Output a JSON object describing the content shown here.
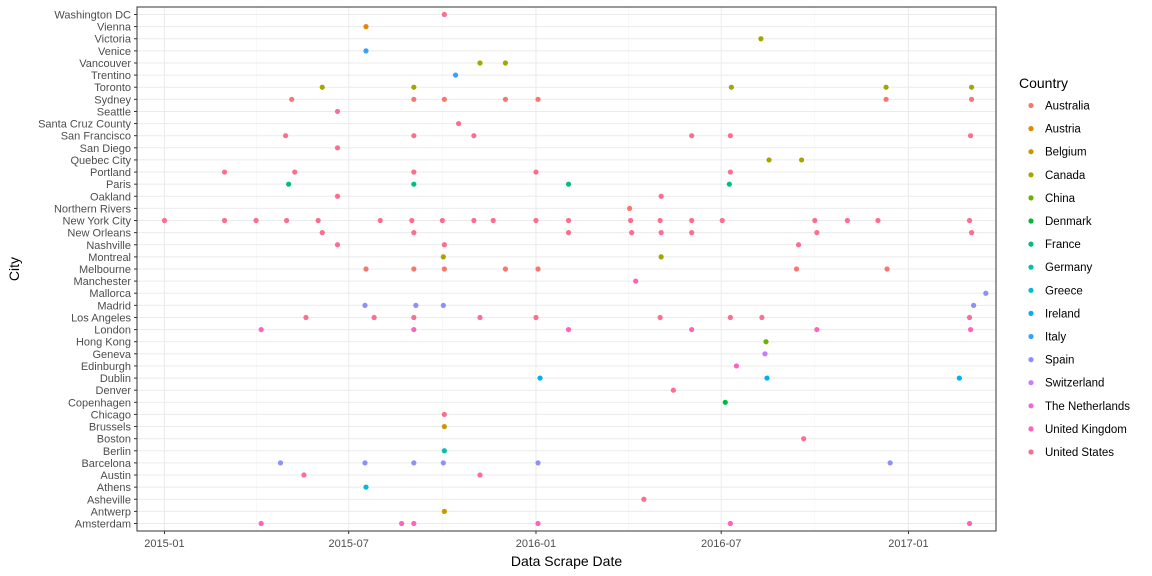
{
  "chart_data": {
    "type": "scatter",
    "title": "",
    "xlabel": "Data Scrape Date",
    "ylabel": "City",
    "xlim": [
      "2014-12-05",
      "2017-03-28"
    ],
    "x_ticks": [
      "2015-01-01",
      "2015-07-01",
      "2016-01-01",
      "2016-07-01",
      "2017-01-01"
    ],
    "x_tick_labels": [
      "2015-01",
      "2015-07",
      "2016-01",
      "2016-07",
      "2017-01"
    ],
    "grid": true,
    "legend": {
      "title": "Country",
      "position": "right",
      "entries": [
        {
          "name": "Australia",
          "color": "#F8766D"
        },
        {
          "name": "Austria",
          "color": "#E58700"
        },
        {
          "name": "Belgium",
          "color": "#C99800"
        },
        {
          "name": "Canada",
          "color": "#A3A500"
        },
        {
          "name": "China",
          "color": "#6BB100"
        },
        {
          "name": "Denmark",
          "color": "#00BA38"
        },
        {
          "name": "France",
          "color": "#00BF7D"
        },
        {
          "name": "Germany",
          "color": "#00C0AF"
        },
        {
          "name": "Greece",
          "color": "#00BCD8"
        },
        {
          "name": "Ireland",
          "color": "#00B0F6"
        },
        {
          "name": "Italy",
          "color": "#35A2FF"
        },
        {
          "name": "Spain",
          "color": "#8E8FFF"
        },
        {
          "name": "Switzerland",
          "color": "#C77CFF"
        },
        {
          "name": "The Netherlands",
          "color": "#F264E2"
        },
        {
          "name": "United Kingdom",
          "color": "#FF62BC"
        },
        {
          "name": "United States",
          "color": "#FF6C91"
        }
      ]
    },
    "categories": [
      "Washington DC",
      "Vienna",
      "Victoria",
      "Venice",
      "Vancouver",
      "Trentino",
      "Toronto",
      "Sydney",
      "Seattle",
      "Santa Cruz County",
      "San Francisco",
      "San Diego",
      "Quebec City",
      "Portland",
      "Paris",
      "Oakland",
      "Northern Rivers",
      "New York City",
      "New Orleans",
      "Nashville",
      "Montreal",
      "Melbourne",
      "Manchester",
      "Mallorca",
      "Madrid",
      "Los Angeles",
      "London",
      "Hong Kong",
      "Geneva",
      "Edinburgh",
      "Dublin",
      "Denver",
      "Copenhagen",
      "Chicago",
      "Brussels",
      "Boston",
      "Berlin",
      "Barcelona",
      "Austin",
      "Athens",
      "Asheville",
      "Antwerp",
      "Amsterdam"
    ],
    "points": [
      {
        "city": "Washington DC",
        "country": "United States",
        "dates": [
          "2015-10-03"
        ]
      },
      {
        "city": "Vienna",
        "country": "Austria",
        "dates": [
          "2015-07-18"
        ]
      },
      {
        "city": "Victoria",
        "country": "Canada",
        "dates": [
          "2016-08-09"
        ]
      },
      {
        "city": "Venice",
        "country": "Italy",
        "dates": [
          "2015-07-18"
        ]
      },
      {
        "city": "Vancouver",
        "country": "Canada",
        "dates": [
          "2015-11-07",
          "2015-12-02"
        ]
      },
      {
        "city": "Trentino",
        "country": "Italy",
        "dates": [
          "2015-10-14"
        ]
      },
      {
        "city": "Toronto",
        "country": "Canada",
        "dates": [
          "2015-06-05",
          "2015-09-03",
          "2016-07-11",
          "2016-12-10",
          "2017-03-04"
        ]
      },
      {
        "city": "Sydney",
        "country": "Australia",
        "dates": [
          "2015-05-06",
          "2015-09-03",
          "2015-10-03",
          "2015-12-02",
          "2016-01-03",
          "2016-12-10",
          "2017-03-04"
        ]
      },
      {
        "city": "Seattle",
        "country": "United States",
        "dates": [
          "2015-06-20"
        ]
      },
      {
        "city": "Santa Cruz County",
        "country": "United States",
        "dates": [
          "2015-10-17"
        ]
      },
      {
        "city": "San Francisco",
        "country": "United States",
        "dates": [
          "2015-04-30",
          "2015-09-03",
          "2015-11-01",
          "2016-06-02",
          "2016-07-10",
          "2017-03-03"
        ]
      },
      {
        "city": "San Diego",
        "country": "United States",
        "dates": [
          "2015-06-20"
        ]
      },
      {
        "city": "Quebec City",
        "country": "Canada",
        "dates": [
          "2016-08-17",
          "2016-09-18"
        ]
      },
      {
        "city": "Portland",
        "country": "United States",
        "dates": [
          "2015-03-01",
          "2015-05-09",
          "2015-09-03",
          "2016-01-01",
          "2016-07-10"
        ]
      },
      {
        "city": "Paris",
        "country": "France",
        "dates": [
          "2015-05-03",
          "2015-09-03",
          "2016-02-02",
          "2016-07-09"
        ]
      },
      {
        "city": "Oakland",
        "country": "United States",
        "dates": [
          "2015-06-20",
          "2016-05-03"
        ]
      },
      {
        "city": "Northern Rivers",
        "country": "Australia",
        "dates": [
          "2016-04-02"
        ]
      },
      {
        "city": "New York City",
        "country": "United States",
        "dates": [
          "2015-01-01",
          "2015-03-01",
          "2015-04-01",
          "2015-05-01",
          "2015-06-01",
          "2015-08-01",
          "2015-09-01",
          "2015-10-01",
          "2015-11-01",
          "2015-11-20",
          "2016-01-01",
          "2016-02-02",
          "2016-04-03",
          "2016-05-02",
          "2016-06-02",
          "2016-07-02",
          "2016-10-01",
          "2016-11-02",
          "2016-12-02",
          "2017-03-02"
        ]
      },
      {
        "city": "New Orleans",
        "country": "United States",
        "dates": [
          "2015-06-05",
          "2015-09-03",
          "2016-02-02",
          "2016-04-04",
          "2016-05-03",
          "2016-06-02",
          "2016-10-03",
          "2017-03-04"
        ]
      },
      {
        "city": "Nashville",
        "country": "United States",
        "dates": [
          "2015-06-20",
          "2015-10-03",
          "2016-09-15"
        ]
      },
      {
        "city": "Montreal",
        "country": "Canada",
        "dates": [
          "2015-10-02",
          "2016-05-03"
        ]
      },
      {
        "city": "Melbourne",
        "country": "Australia",
        "dates": [
          "2015-07-18",
          "2015-09-03",
          "2015-10-03",
          "2015-12-02",
          "2016-01-03",
          "2016-09-13",
          "2016-12-11"
        ]
      },
      {
        "city": "Manchester",
        "country": "United Kingdom",
        "dates": [
          "2016-04-08"
        ]
      },
      {
        "city": "Mallorca",
        "country": "Spain",
        "dates": [
          "2017-03-18"
        ]
      },
      {
        "city": "Madrid",
        "country": "Spain",
        "dates": [
          "2015-07-17",
          "2015-09-05",
          "2015-10-02",
          "2017-03-06"
        ]
      },
      {
        "city": "Los Angeles",
        "country": "United States",
        "dates": [
          "2015-05-20",
          "2015-07-26",
          "2015-09-03",
          "2015-11-07",
          "2016-01-01",
          "2016-05-02",
          "2016-07-10",
          "2016-08-10",
          "2017-03-02"
        ]
      },
      {
        "city": "London",
        "country": "United Kingdom",
        "dates": [
          "2015-04-06",
          "2015-09-03",
          "2016-02-02",
          "2016-06-02",
          "2016-10-03",
          "2017-03-03"
        ]
      },
      {
        "city": "Hong Kong",
        "country": "China",
        "dates": [
          "2016-08-14"
        ]
      },
      {
        "city": "Geneva",
        "country": "Switzerland",
        "dates": [
          "2016-08-13"
        ]
      },
      {
        "city": "Edinburgh",
        "country": "United Kingdom",
        "dates": [
          "2016-07-16"
        ]
      },
      {
        "city": "Dublin",
        "country": "Ireland",
        "dates": [
          "2016-01-05",
          "2016-08-15",
          "2017-02-20"
        ]
      },
      {
        "city": "Denver",
        "country": "United States",
        "dates": [
          "2016-05-15"
        ]
      },
      {
        "city": "Copenhagen",
        "country": "Denmark",
        "dates": [
          "2016-07-05"
        ]
      },
      {
        "city": "Chicago",
        "country": "United States",
        "dates": [
          "2015-10-03"
        ]
      },
      {
        "city": "Brussels",
        "country": "Belgium",
        "dates": [
          "2015-10-03"
        ]
      },
      {
        "city": "Boston",
        "country": "United States",
        "dates": [
          "2016-09-20"
        ]
      },
      {
        "city": "Berlin",
        "country": "Germany",
        "dates": [
          "2015-10-03"
        ]
      },
      {
        "city": "Barcelona",
        "country": "Spain",
        "dates": [
          "2015-04-25",
          "2015-07-17",
          "2015-09-03",
          "2015-10-02",
          "2016-01-03",
          "2016-12-14"
        ]
      },
      {
        "city": "Austin",
        "country": "United States",
        "dates": [
          "2015-05-18",
          "2015-11-07"
        ]
      },
      {
        "city": "Athens",
        "country": "Greece",
        "dates": [
          "2015-07-18"
        ]
      },
      {
        "city": "Asheville",
        "country": "United States",
        "dates": [
          "2016-04-16"
        ]
      },
      {
        "city": "Antwerp",
        "country": "Belgium",
        "dates": [
          "2015-10-03"
        ]
      },
      {
        "city": "Amsterdam",
        "country": "United Kingdom",
        "dates": [
          "2015-04-06",
          "2015-08-22",
          "2015-09-03",
          "2016-01-03",
          "2016-07-10",
          "2017-03-02"
        ]
      }
    ]
  }
}
